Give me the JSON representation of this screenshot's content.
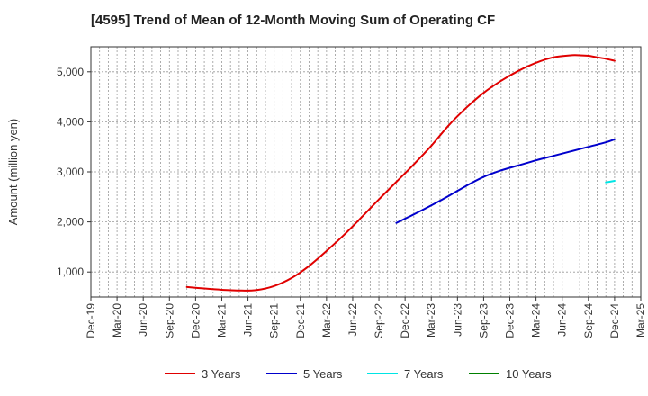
{
  "chart_data": {
    "type": "line",
    "title": "[4595]  Trend of Mean of 12-Month Moving Sum of Operating CF",
    "xlabel": "",
    "ylabel": "Amount (million yen)",
    "ylim": [
      500,
      5500
    ],
    "yticks": [
      1000,
      2000,
      3000,
      4000,
      5000
    ],
    "ytick_labels": [
      "1,000",
      "2,000",
      "3,000",
      "4,000",
      "5,000"
    ],
    "x_range_months": [
      0,
      63
    ],
    "xtick_labels": [
      "Dec-19",
      "Mar-20",
      "Jun-20",
      "Sep-20",
      "Dec-20",
      "Mar-21",
      "Jun-21",
      "Sep-21",
      "Dec-21",
      "Mar-22",
      "Jun-22",
      "Sep-22",
      "Dec-22",
      "Mar-23",
      "Jun-23",
      "Sep-23",
      "Dec-23",
      "Mar-24",
      "Jun-24",
      "Sep-24",
      "Dec-24",
      "Mar-25"
    ],
    "grid": true,
    "legend_position": "bottom",
    "series": [
      {
        "name": "3 Years",
        "color": "#e00000",
        "x": [
          11,
          13,
          15,
          17,
          19,
          21,
          23,
          25,
          27,
          29,
          31,
          33,
          35,
          37,
          39,
          41,
          43,
          45,
          47,
          49,
          51,
          53,
          55,
          56,
          57,
          58,
          59,
          60
        ],
        "values": [
          700,
          670,
          645,
          630,
          640,
          720,
          880,
          1120,
          1420,
          1740,
          2090,
          2450,
          2800,
          3150,
          3520,
          3930,
          4280,
          4580,
          4820,
          5020,
          5180,
          5290,
          5330,
          5330,
          5320,
          5290,
          5260,
          5220
        ]
      },
      {
        "name": "5 Years",
        "color": "#0000cc",
        "x": [
          35,
          37,
          39,
          41,
          43,
          45,
          47,
          49,
          51,
          53,
          55,
          57,
          59,
          60
        ],
        "values": [
          1980,
          2150,
          2330,
          2520,
          2720,
          2900,
          3030,
          3130,
          3230,
          3320,
          3410,
          3500,
          3590,
          3650
        ]
      },
      {
        "name": "7 Years",
        "color": "#00e5e5",
        "x": [
          59,
          60
        ],
        "values": [
          2790,
          2820
        ]
      },
      {
        "name": "10 Years",
        "color": "#008000",
        "x": [],
        "values": []
      }
    ]
  }
}
